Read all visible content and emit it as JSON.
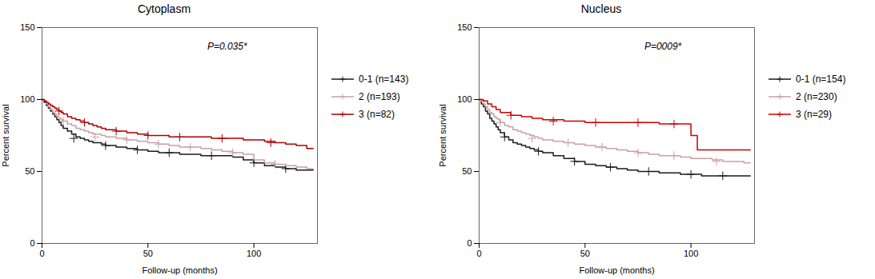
{
  "chart_data": [
    {
      "type": "step",
      "title": "Cytoplasm",
      "annotation": "P=0.035*",
      "xlabel": "Follow-up (months)",
      "ylabel": "Percent survival",
      "xlim": [
        0,
        130
      ],
      "ylim": [
        0,
        150
      ],
      "xticks": [
        0,
        50,
        100
      ],
      "yticks": [
        0,
        50,
        100,
        150
      ],
      "legend": "right",
      "series": [
        {
          "name": "0-1 (n=143)",
          "color": "#1a1a1a",
          "marker": "plus",
          "x": [
            0,
            1,
            2,
            3,
            4,
            5,
            6,
            7,
            8,
            9,
            10,
            12,
            14,
            16,
            18,
            20,
            22,
            24,
            26,
            28,
            30,
            35,
            40,
            45,
            50,
            55,
            60,
            65,
            70,
            75,
            80,
            85,
            90,
            95,
            100,
            105,
            110,
            115,
            120,
            125,
            128
          ],
          "values": [
            100,
            98,
            96,
            94,
            92,
            90,
            88,
            86,
            84,
            82,
            80,
            78,
            76,
            74,
            73,
            72,
            71,
            70,
            70,
            69,
            68,
            67,
            66,
            65,
            64,
            63,
            63,
            62,
            62,
            61,
            61,
            61,
            60,
            58,
            56,
            54,
            53,
            52,
            51,
            51,
            51
          ],
          "censor_x": [
            15,
            30,
            45,
            60,
            80,
            100,
            115
          ],
          "censor_y": [
            73,
            68,
            65,
            63,
            61,
            56,
            52
          ]
        },
        {
          "name": "2 (n=193)",
          "color": "#c8a0a8",
          "marker": "plus",
          "x": [
            0,
            1,
            2,
            3,
            4,
            5,
            6,
            7,
            8,
            9,
            10,
            12,
            14,
            16,
            18,
            20,
            22,
            24,
            26,
            28,
            30,
            35,
            40,
            45,
            50,
            55,
            60,
            65,
            70,
            75,
            80,
            85,
            90,
            95,
            100,
            105,
            110,
            115,
            120,
            125,
            128
          ],
          "values": [
            100,
            99,
            97,
            95,
            93,
            91,
            90,
            88,
            87,
            86,
            85,
            83,
            82,
            80,
            79,
            78,
            77,
            76,
            76,
            75,
            74,
            73,
            72,
            71,
            70,
            69,
            68,
            67,
            67,
            66,
            65,
            64,
            63,
            62,
            58,
            56,
            55,
            54,
            53,
            52,
            52
          ],
          "censor_x": [
            10,
            25,
            40,
            55,
            70,
            90,
            110
          ],
          "censor_y": [
            85,
            74,
            72,
            69,
            67,
            63,
            55
          ]
        },
        {
          "name": "3 (n=82)",
          "color": "#aa0000",
          "marker": "plus",
          "x": [
            0,
            1,
            2,
            3,
            4,
            5,
            6,
            7,
            8,
            9,
            10,
            12,
            14,
            16,
            18,
            20,
            22,
            24,
            26,
            28,
            30,
            35,
            40,
            45,
            50,
            55,
            60,
            65,
            70,
            75,
            80,
            85,
            90,
            95,
            100,
            105,
            110,
            115,
            120,
            125,
            128
          ],
          "values": [
            100,
            99,
            98,
            97,
            96,
            95,
            94,
            93,
            92,
            91,
            90,
            88,
            87,
            86,
            85,
            84,
            83,
            82,
            81,
            80,
            79,
            78,
            77,
            76,
            75,
            75,
            74,
            74,
            74,
            74,
            73,
            73,
            73,
            72,
            72,
            71,
            70,
            69,
            68,
            66,
            66
          ],
          "censor_x": [
            8,
            20,
            35,
            50,
            65,
            85,
            108
          ],
          "censor_y": [
            92,
            84,
            78,
            75,
            74,
            73,
            70
          ]
        }
      ]
    },
    {
      "type": "step",
      "title": "Nucleus",
      "annotation": "P=0009*",
      "xlabel": "Follow-up (months)",
      "ylabel": "Percent survival",
      "xlim": [
        0,
        130
      ],
      "ylim": [
        0,
        150
      ],
      "xticks": [
        0,
        50,
        100
      ],
      "yticks": [
        0,
        50,
        100,
        150
      ],
      "legend": "right",
      "series": [
        {
          "name": "0-1 (n=154)",
          "color": "#1a1a1a",
          "marker": "plus",
          "x": [
            0,
            1,
            2,
            3,
            4,
            5,
            6,
            7,
            8,
            9,
            10,
            12,
            14,
            16,
            18,
            20,
            22,
            24,
            26,
            28,
            30,
            35,
            40,
            45,
            50,
            55,
            60,
            65,
            70,
            75,
            80,
            85,
            90,
            95,
            100,
            105,
            110,
            115,
            120,
            125,
            128
          ],
          "values": [
            100,
            97,
            95,
            92,
            90,
            87,
            85,
            83,
            81,
            79,
            77,
            74,
            72,
            70,
            69,
            68,
            67,
            66,
            65,
            64,
            63,
            61,
            59,
            57,
            55,
            54,
            53,
            52,
            51,
            50,
            50,
            49,
            49,
            48,
            48,
            47,
            47,
            47,
            47,
            47,
            47
          ],
          "censor_x": [
            12,
            28,
            45,
            62,
            80,
            100,
            115
          ],
          "censor_y": [
            74,
            64,
            57,
            53,
            50,
            48,
            47
          ]
        },
        {
          "name": "2 (n=230)",
          "color": "#c8a0a8",
          "marker": "plus",
          "x": [
            0,
            1,
            2,
            3,
            4,
            5,
            6,
            7,
            8,
            9,
            10,
            12,
            14,
            16,
            18,
            20,
            22,
            24,
            26,
            28,
            30,
            35,
            40,
            45,
            50,
            55,
            60,
            65,
            70,
            75,
            80,
            85,
            90,
            95,
            100,
            105,
            110,
            115,
            120,
            125,
            128
          ],
          "values": [
            100,
            99,
            97,
            95,
            93,
            91,
            90,
            88,
            87,
            86,
            84,
            82,
            81,
            79,
            78,
            77,
            76,
            75,
            74,
            73,
            72,
            71,
            70,
            69,
            68,
            67,
            66,
            65,
            64,
            63,
            62,
            61,
            61,
            60,
            59,
            59,
            58,
            57,
            57,
            56,
            56
          ],
          "censor_x": [
            10,
            25,
            42,
            58,
            75,
            92,
            112
          ],
          "censor_y": [
            84,
            73,
            70,
            67,
            63,
            61,
            57
          ]
        },
        {
          "name": "3 (n=29)",
          "color": "#cc0000",
          "marker": "plus",
          "x": [
            0,
            2,
            4,
            6,
            8,
            10,
            15,
            20,
            25,
            30,
            40,
            50,
            60,
            70,
            80,
            85,
            90,
            95,
            100,
            103,
            105,
            108,
            110,
            115,
            120,
            125,
            128
          ],
          "values": [
            100,
            99,
            97,
            95,
            93,
            91,
            89,
            88,
            87,
            86,
            85,
            84,
            84,
            84,
            84,
            83,
            83,
            83,
            75,
            65,
            65,
            65,
            65,
            65,
            65,
            65,
            65
          ],
          "censor_x": [
            15,
            35,
            55,
            75,
            92
          ],
          "censor_y": [
            89,
            85,
            84,
            84,
            83
          ]
        }
      ]
    }
  ]
}
